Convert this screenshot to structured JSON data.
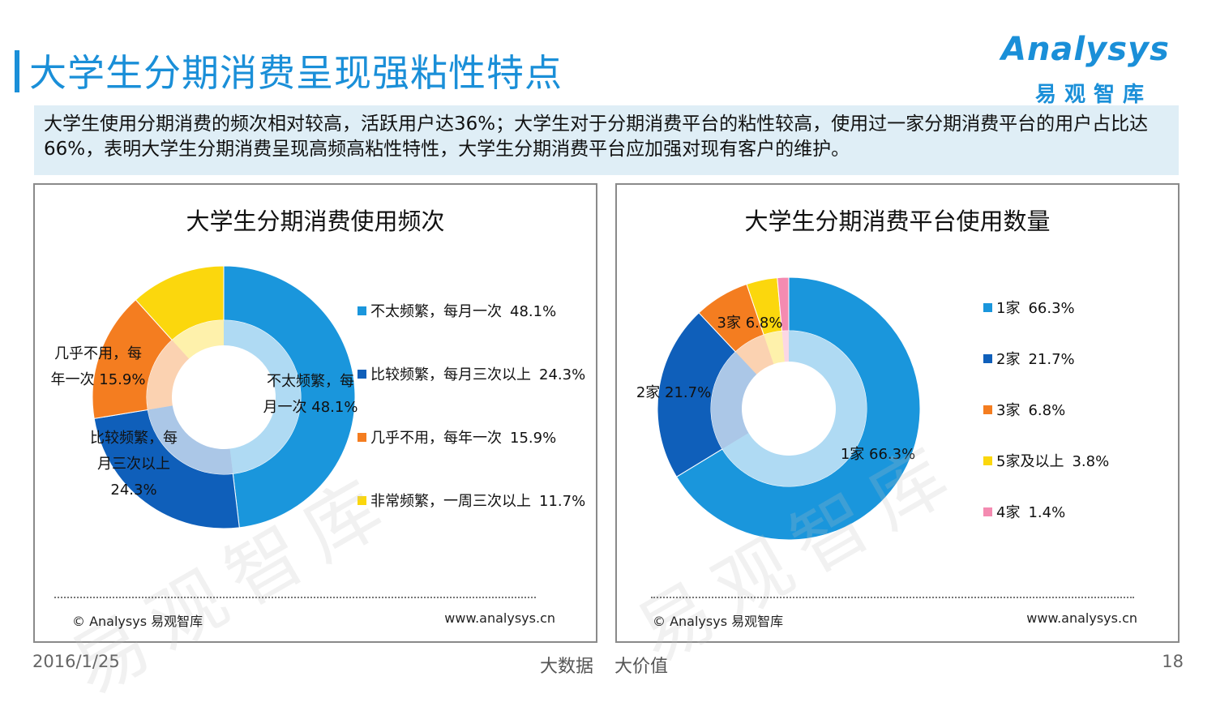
{
  "page": {
    "title": "大学生分期消费呈现强粘性特点",
    "summary": "大学生使用分期消费的频次相对较高，活跃用户达36%；大学生对于分期消费平台的粘性较高，使用过一家分期消费平台的用户占比达66%，表明大学生分期消费呈现高频高粘性特性，大学生分期消费平台应加强对现有客户的维护。",
    "logo_word": "Analysys",
    "logo_cn": "易观智库",
    "watermark": "易观智库",
    "date": "2016/1/25",
    "slogan_1": "大数据",
    "slogan_2": "大价值",
    "page_number": "18"
  },
  "footer": {
    "source": "© Analysys 易观智库",
    "url": "www.analysys.cn"
  },
  "chart_data": [
    {
      "type": "pie",
      "variant": "donut",
      "title": "大学生分期消费使用频次",
      "categories": [
        "不太频繁，每月一次",
        "比较频繁，每月三次以上",
        "几乎不用，每年一次",
        "非常频繁，一周三次以上"
      ],
      "values": [
        48.1,
        24.3,
        15.9,
        11.7
      ],
      "value_labels": [
        "48.1%",
        "24.3%",
        "15.9%",
        "11.7%"
      ],
      "colors": [
        "#1a96dc",
        "#0f5fba",
        "#f47d20",
        "#fbd70d"
      ],
      "slice_labels": [
        [
          "不太频繁，每",
          "月一次",
          "48.1%"
        ],
        [
          "比较频繁，每",
          "月三次以上",
          "24.3%"
        ],
        [
          "几乎不用，每",
          "年一次",
          "15.9%"
        ]
      ],
      "legend_position": "right"
    },
    {
      "type": "pie",
      "variant": "donut",
      "title": "大学生分期消费平台使用数量",
      "categories": [
        "1家",
        "2家",
        "3家",
        "5家及以上",
        "4家"
      ],
      "values": [
        66.3,
        21.7,
        6.8,
        3.8,
        1.4
      ],
      "value_labels": [
        "66.3%",
        "21.7%",
        "6.8%",
        "3.8%",
        "1.4%"
      ],
      "colors": [
        "#1a96dc",
        "#0f5fba",
        "#f47d20",
        "#fbd70d",
        "#f48bb1"
      ],
      "slice_labels": [
        [
          "1家",
          "66.3%"
        ],
        [
          "2家",
          "21.7%"
        ],
        [
          "3家",
          "6.8%"
        ]
      ],
      "legend_position": "right"
    }
  ]
}
